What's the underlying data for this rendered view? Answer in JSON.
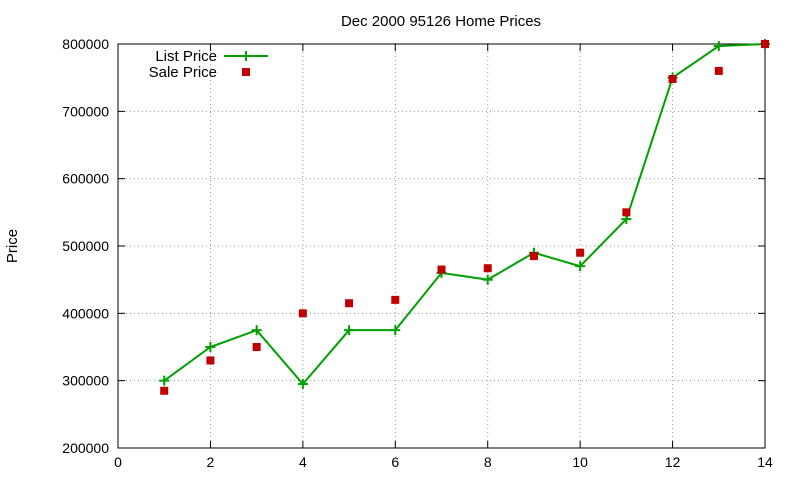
{
  "chart_data": {
    "type": "line",
    "title": "Dec 2000 95126 Home Prices",
    "xlabel": "",
    "ylabel": "Price",
    "xlim": [
      0,
      14
    ],
    "ylim": [
      200000,
      800000
    ],
    "xticks": [
      0,
      2,
      4,
      6,
      8,
      10,
      12,
      14
    ],
    "yticks": [
      200000,
      300000,
      400000,
      500000,
      600000,
      700000,
      800000
    ],
    "grid": true,
    "legend_position": "top-left",
    "series": [
      {
        "name": "List Price",
        "style": "line-points",
        "color": "#00a000",
        "x": [
          1,
          2,
          3,
          4,
          5,
          6,
          7,
          8,
          9,
          10,
          11,
          12,
          13,
          14
        ],
        "y": [
          300000,
          350000,
          375000,
          295000,
          375000,
          375000,
          460000,
          450000,
          490000,
          470000,
          540000,
          750000,
          797000,
          800000
        ]
      },
      {
        "name": "Sale Price",
        "style": "points",
        "color": "#c00000",
        "x": [
          1,
          2,
          3,
          4,
          5,
          6,
          7,
          8,
          9,
          10,
          11,
          12,
          13,
          14
        ],
        "y": [
          285000,
          330000,
          350000,
          400000,
          415000,
          420000,
          465000,
          467000,
          485000,
          490000,
          550000,
          748000,
          760000,
          800000
        ]
      }
    ]
  }
}
